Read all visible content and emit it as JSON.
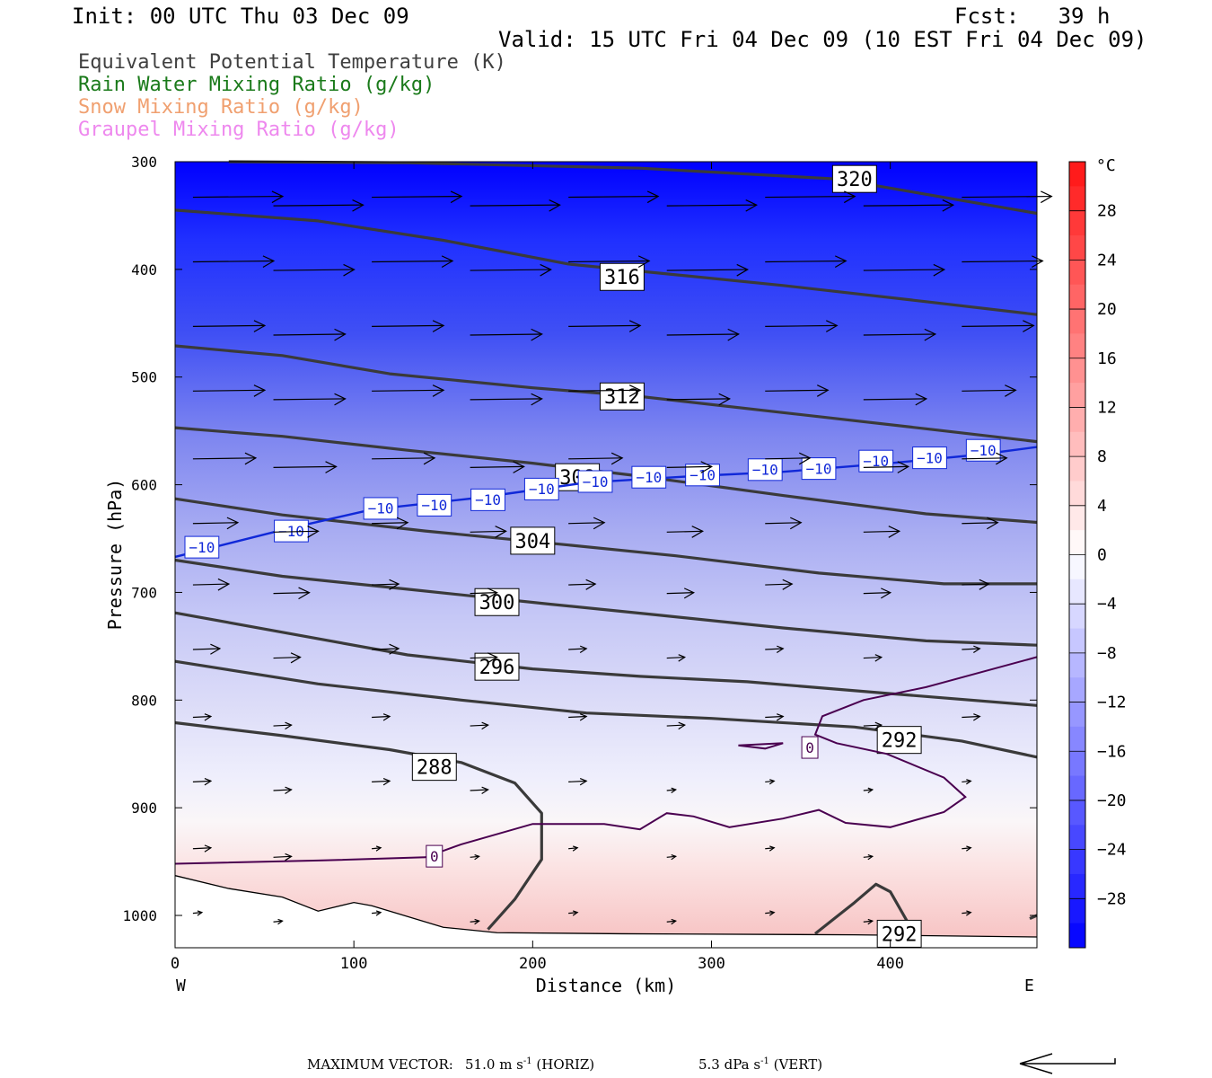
{
  "header": {
    "init": "Init: 00 UTC Thu 03 Dec 09",
    "fcst": "Fcst:   39 h",
    "valid": "Valid: 15 UTC Fri 04 Dec 09 (10 EST Fri 04 Dec 09)"
  },
  "legend": [
    {
      "label": "Equivalent Potential Temperature (K)",
      "color": "#404040"
    },
    {
      "label": "Rain Water Mixing Ratio (g/kg)",
      "color": "#1a7a1a"
    },
    {
      "label": "Snow Mixing Ratio (g/kg)",
      "color": "#f0a070"
    },
    {
      "label": "Graupel Mixing Ratio (g/kg)",
      "color": "#ee88ee"
    }
  ],
  "footer": {
    "max_vector_label": "MAXIMUM VECTOR:",
    "horiz_value": "51.0",
    "horiz_unit": "m s",
    "horiz_tag": "(HORIZ)",
    "vert_value": "5.3",
    "vert_unit": "dPa s",
    "vert_tag": "(VERT)"
  },
  "chart_data": {
    "type": "heatmap",
    "xlabel": "Distance (km)",
    "ylabel": "Pressure (hPa)",
    "xlim": [
      0,
      482
    ],
    "ylim": [
      1030,
      300
    ],
    "x_ticks": [
      0,
      100,
      200,
      300,
      400
    ],
    "y_ticks": [
      300,
      400,
      500,
      600,
      700,
      800,
      900,
      1000
    ],
    "x_end_labels": {
      "left": "W",
      "right": "E"
    },
    "colorbar": {
      "unit": "°C",
      "range": [
        -32,
        32
      ],
      "tick_labels": [
        28,
        24,
        20,
        16,
        12,
        8,
        4,
        0,
        -4,
        -8,
        -12,
        -16,
        -20,
        -24,
        -28
      ],
      "cold_color": "#0000ff",
      "warm_color": "#ff1414"
    },
    "theta_e_contours": [
      {
        "label": "320",
        "points": [
          [
            30,
            300
          ],
          [
            130,
            301
          ],
          [
            260,
            306
          ],
          [
            370,
            316
          ],
          [
            482,
            348
          ]
        ]
      },
      {
        "label": "316",
        "points": [
          [
            0,
            345
          ],
          [
            80,
            355
          ],
          [
            150,
            373
          ],
          [
            220,
            395
          ],
          [
            340,
            415
          ],
          [
            420,
            430
          ],
          [
            482,
            442
          ]
        ]
      },
      {
        "label": "312",
        "points": [
          [
            0,
            471
          ],
          [
            60,
            480
          ],
          [
            120,
            497
          ],
          [
            200,
            510
          ],
          [
            260,
            518
          ],
          [
            340,
            533
          ],
          [
            420,
            548
          ],
          [
            482,
            560
          ]
        ]
      },
      {
        "label": "308",
        "points": [
          [
            0,
            547
          ],
          [
            60,
            555
          ],
          [
            130,
            568
          ],
          [
            200,
            580
          ],
          [
            260,
            592
          ],
          [
            340,
            610
          ],
          [
            420,
            627
          ],
          [
            482,
            635
          ]
        ]
      },
      {
        "label": "304",
        "points": [
          [
            0,
            613
          ],
          [
            60,
            628
          ],
          [
            140,
            643
          ],
          [
            220,
            656
          ],
          [
            280,
            666
          ],
          [
            360,
            682
          ],
          [
            430,
            692
          ],
          [
            482,
            692
          ]
        ]
      },
      {
        "label": "300",
        "points": [
          [
            0,
            670
          ],
          [
            60,
            685
          ],
          [
            130,
            697
          ],
          [
            210,
            711
          ],
          [
            270,
            721
          ],
          [
            340,
            733
          ],
          [
            420,
            745
          ],
          [
            482,
            749
          ]
        ]
      },
      {
        "label": "296",
        "points": [
          [
            0,
            719
          ],
          [
            60,
            737
          ],
          [
            130,
            758
          ],
          [
            200,
            771
          ],
          [
            260,
            778
          ],
          [
            320,
            783
          ],
          [
            400,
            794
          ],
          [
            482,
            805
          ]
        ]
      },
      {
        "label": "292",
        "points": [
          [
            0,
            764
          ],
          [
            80,
            785
          ],
          [
            160,
            800
          ],
          [
            230,
            812
          ],
          [
            300,
            817
          ],
          [
            380,
            825
          ],
          [
            440,
            838
          ],
          [
            482,
            853
          ]
        ]
      },
      {
        "label": "288",
        "points": [
          [
            0,
            821
          ],
          [
            60,
            833
          ],
          [
            120,
            846
          ],
          [
            160,
            858
          ],
          [
            190,
            877
          ],
          [
            205,
            905
          ],
          [
            205,
            948
          ],
          [
            190,
            985
          ],
          [
            175,
            1013
          ]
        ]
      },
      {
        "label": "292",
        "points": [
          [
            358,
            1017
          ],
          [
            380,
            988
          ],
          [
            392,
            971
          ],
          [
            400,
            978
          ],
          [
            412,
            1013
          ]
        ]
      },
      {
        "label": "",
        "points": [
          [
            478,
            1003
          ],
          [
            482,
            1000
          ]
        ]
      }
    ],
    "temp_isotherms": [
      {
        "label": "-10",
        "color": "#1028d8",
        "points": [
          [
            0,
            667
          ],
          [
            60,
            642
          ],
          [
            110,
            623
          ],
          [
            170,
            612
          ],
          [
            230,
            598
          ],
          [
            290,
            592
          ],
          [
            340,
            588
          ],
          [
            400,
            580
          ],
          [
            450,
            572
          ],
          [
            482,
            565
          ]
        ]
      },
      {
        "label": "0",
        "color": "#4a0050",
        "points": [
          [
            0,
            952
          ],
          [
            80,
            949
          ],
          [
            140,
            946
          ],
          [
            160,
            934
          ],
          [
            200,
            915
          ],
          [
            240,
            915
          ],
          [
            260,
            920
          ],
          [
            275,
            905
          ],
          [
            290,
            908
          ],
          [
            310,
            918
          ],
          [
            340,
            910
          ],
          [
            360,
            902
          ],
          [
            375,
            914
          ],
          [
            400,
            918
          ],
          [
            430,
            904
          ],
          [
            442,
            890
          ],
          [
            430,
            872
          ],
          [
            398,
            850
          ],
          [
            370,
            840
          ],
          [
            358,
            832
          ],
          [
            362,
            815
          ],
          [
            385,
            800
          ],
          [
            420,
            788
          ],
          [
            482,
            760
          ]
        ]
      },
      {
        "label": "",
        "color": "#4a0050",
        "points": [
          [
            315,
            842
          ],
          [
            340,
            840
          ],
          [
            330,
            845
          ],
          [
            315,
            842
          ]
        ]
      }
    ],
    "ground_boundary": [
      [
        0,
        963
      ],
      [
        30,
        975
      ],
      [
        60,
        983
      ],
      [
        80,
        996
      ],
      [
        100,
        988
      ],
      [
        110,
        991
      ],
      [
        150,
        1011
      ],
      [
        180,
        1016
      ],
      [
        250,
        1017
      ],
      [
        380,
        1018
      ],
      [
        482,
        1020
      ]
    ],
    "wind_vectors": {
      "rows": [
        {
          "p": 335,
          "len": [
            10,
            10,
            10,
            10,
            10,
            10,
            10,
            10,
            10
          ]
        },
        {
          "p": 395,
          "len": [
            9,
            9,
            9,
            9,
            9,
            9,
            9,
            9,
            9
          ]
        },
        {
          "p": 455,
          "len": [
            8,
            8,
            8,
            8,
            8,
            8,
            8,
            8,
            8
          ]
        },
        {
          "p": 515,
          "len": [
            8,
            8,
            8,
            8,
            8,
            7,
            7,
            7,
            6
          ]
        },
        {
          "p": 578,
          "len": [
            7,
            7,
            7,
            6,
            6,
            5,
            5,
            5,
            5
          ]
        },
        {
          "p": 638,
          "len": [
            5,
            5,
            4,
            4,
            4,
            4,
            4,
            4,
            4
          ]
        },
        {
          "p": 695,
          "len": [
            4,
            4,
            3,
            3,
            3,
            3,
            3,
            3,
            3
          ]
        },
        {
          "p": 755,
          "len": [
            3,
            3,
            3,
            3,
            2,
            2,
            2,
            2,
            2
          ]
        },
        {
          "p": 818,
          "len": [
            2,
            2,
            2,
            2,
            2,
            2,
            2,
            2,
            2
          ]
        },
        {
          "p": 878,
          "len": [
            2,
            2,
            2,
            2,
            2,
            1,
            1,
            1,
            1
          ]
        },
        {
          "p": 940,
          "len": [
            2,
            2,
            1,
            1,
            1,
            1,
            1,
            1,
            1
          ]
        },
        {
          "p": 1000,
          "len": [
            1,
            1,
            1,
            1,
            1,
            1,
            1,
            1,
            1
          ]
        }
      ]
    }
  }
}
